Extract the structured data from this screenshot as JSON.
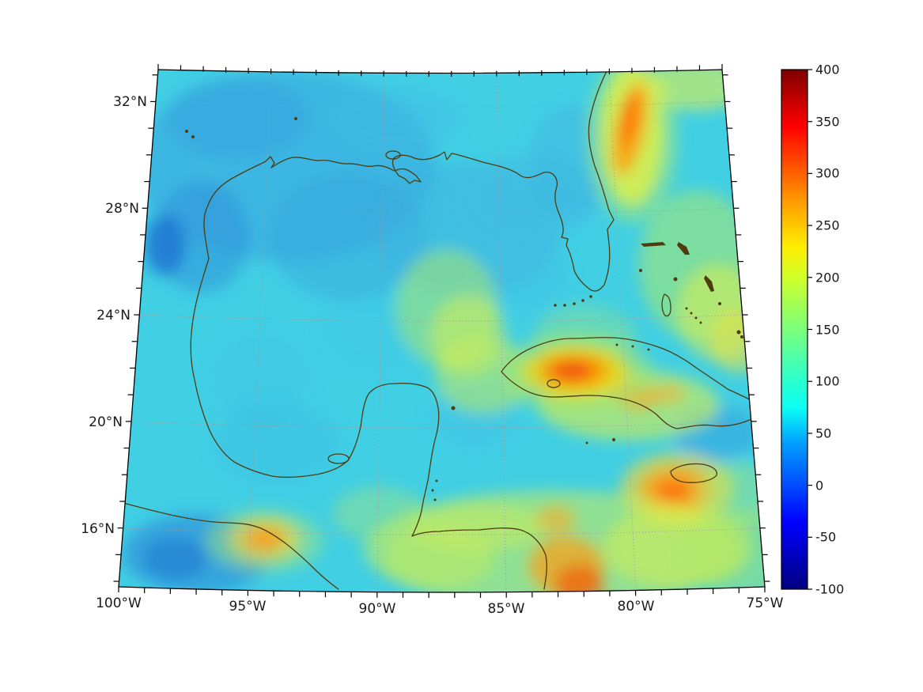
{
  "chart_data": {
    "type": "heatmap",
    "title": "",
    "x_axis": {
      "label": "",
      "ticks": [
        "100°W",
        "95°W",
        "90°W",
        "85°W",
        "80°W",
        "75°W"
      ]
    },
    "y_axis": {
      "label": "",
      "ticks": [
        "32°N",
        "28°N",
        "24°N",
        "20°N",
        "16°N"
      ]
    },
    "colorbar": {
      "min": -100,
      "max": 400,
      "colormap": "jet",
      "tick_labels": [
        "400",
        "350",
        "300",
        "250",
        "200",
        "150",
        "100",
        "50",
        "0",
        "-50",
        "-100"
      ]
    },
    "map_extent": {
      "west_lon": "100°W",
      "east_lon": "75°W",
      "south_lat": "~14°N",
      "north_lat": "~33°N"
    },
    "projection_hint": "conic (meridians converge upward, parallels gently curved)",
    "grid": "dotted graticule every 4° latitude / 5° longitude",
    "features": [
      {
        "area": "open Gulf of Mexico background",
        "approx_value": 90
      },
      {
        "area": "northwest Gulf off Texas coast",
        "approx_value": 40
      },
      {
        "area": "small spot on Mexican coast near 97.5W 26.5N",
        "approx_value": -20
      },
      {
        "area": "southwest corner off Pacific Guatemala",
        "approx_value": 20
      },
      {
        "area": "streak along Florida Atlantic shelf",
        "approx_value": 280
      },
      {
        "area": "western-central Cuba hotspot",
        "approx_value": 320
      },
      {
        "area": "south of eastern Cuba band",
        "approx_value": 200
      },
      {
        "area": "Jamaica vicinity hotspot",
        "approx_value": 270
      },
      {
        "area": "eastern Honduras / Nicaragua coast",
        "approx_value": 290
      },
      {
        "area": "Pacific coast of Guatemala spot",
        "approx_value": 250
      },
      {
        "area": "Bahamas / NW Caribbean broad band",
        "approx_value": 180
      },
      {
        "area": "mid-Gulf loop-current tongue",
        "approx_value": 170
      }
    ]
  }
}
